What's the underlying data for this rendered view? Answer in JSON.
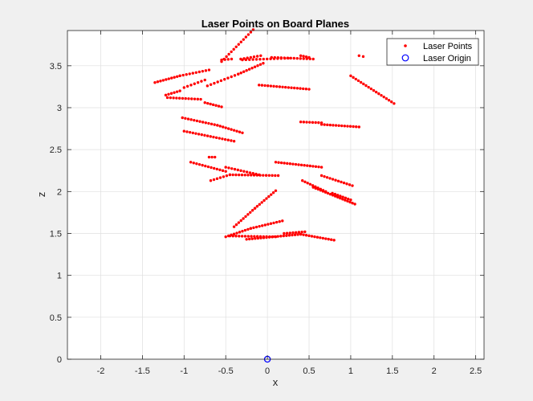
{
  "chart_data": {
    "type": "scatter",
    "title": "Laser Points on Board Planes",
    "xlabel": "x",
    "ylabel": "z",
    "xlim": [
      -2.4,
      2.6
    ],
    "ylim": [
      0,
      3.92
    ],
    "x_ticks": [
      -2,
      -1.5,
      -1,
      -0.5,
      0,
      0.5,
      1,
      1.5,
      2,
      2.5
    ],
    "x_tick_labels": [
      "-2",
      "-1.5",
      "-1",
      "-0.5",
      "0",
      "0.5",
      "1",
      "1.5",
      "2",
      "2.5"
    ],
    "y_ticks": [
      0,
      0.5,
      1,
      1.5,
      2,
      2.5,
      3,
      3.5
    ],
    "y_tick_labels": [
      "0",
      "0.5",
      "1",
      "1.5",
      "2",
      "2.5",
      "3",
      "3.5"
    ],
    "grid": true,
    "legend_position": "top-right",
    "colors": {
      "points": "#ff0000",
      "origin": "#0000ff",
      "axes": "#262626",
      "grid": "#dfdfdf"
    },
    "series": [
      {
        "name": "Laser Points",
        "marker": "dot",
        "segments": [
          {
            "x0": -0.55,
            "z0": 3.55,
            "x1": -0.17,
            "z1": 3.93,
            "n": 14
          },
          {
            "x0": -0.55,
            "z0": 3.57,
            "x1": -0.43,
            "z1": 3.58,
            "n": 4
          },
          {
            "x0": -0.3,
            "z0": 3.57,
            "x1": 0.25,
            "z1": 3.59,
            "n": 14
          },
          {
            "x0": -0.32,
            "z0": 3.58,
            "x1": -0.08,
            "z1": 3.62,
            "n": 7
          },
          {
            "x0": 0.05,
            "z0": 3.6,
            "x1": 0.55,
            "z1": 3.58,
            "n": 14
          },
          {
            "x0": 0.4,
            "z0": 3.62,
            "x1": 0.5,
            "z1": 3.6,
            "n": 4
          },
          {
            "x0": -1.35,
            "z0": 3.3,
            "x1": -1.05,
            "z1": 3.38,
            "n": 10
          },
          {
            "x0": -1.05,
            "z0": 3.38,
            "x1": -0.7,
            "z1": 3.45,
            "n": 10
          },
          {
            "x0": -0.72,
            "z0": 3.26,
            "x1": -0.35,
            "z1": 3.4,
            "n": 10
          },
          {
            "x0": -0.35,
            "z0": 3.4,
            "x1": -0.05,
            "z1": 3.53,
            "n": 10
          },
          {
            "x0": -1.0,
            "z0": 3.24,
            "x1": -0.75,
            "z1": 3.33,
            "n": 7
          },
          {
            "x0": -1.22,
            "z0": 3.15,
            "x1": -1.05,
            "z1": 3.2,
            "n": 6
          },
          {
            "x0": -1.2,
            "z0": 3.12,
            "x1": -0.8,
            "z1": 3.1,
            "n": 12
          },
          {
            "x0": -0.75,
            "z0": 3.06,
            "x1": -0.55,
            "z1": 3.01,
            "n": 7
          },
          {
            "x0": -0.1,
            "z0": 3.27,
            "x1": 0.5,
            "z1": 3.22,
            "n": 18
          },
          {
            "x0": 1.1,
            "z0": 3.62,
            "x1": 1.15,
            "z1": 3.61,
            "n": 2
          },
          {
            "x0": 1.0,
            "z0": 3.38,
            "x1": 1.52,
            "z1": 3.05,
            "n": 18
          },
          {
            "x0": -1.02,
            "z0": 2.88,
            "x1": -0.6,
            "z1": 2.79,
            "n": 13
          },
          {
            "x0": -0.6,
            "z0": 2.79,
            "x1": -0.3,
            "z1": 2.7,
            "n": 10
          },
          {
            "x0": -1.0,
            "z0": 2.72,
            "x1": -0.4,
            "z1": 2.6,
            "n": 18
          },
          {
            "x0": 0.4,
            "z0": 2.83,
            "x1": 0.65,
            "z1": 2.82,
            "n": 8
          },
          {
            "x0": 0.65,
            "z0": 2.8,
            "x1": 1.1,
            "z1": 2.77,
            "n": 14
          },
          {
            "x0": -0.7,
            "z0": 2.41,
            "x1": -0.63,
            "z1": 2.41,
            "n": 3
          },
          {
            "x0": -0.92,
            "z0": 2.35,
            "x1": -0.5,
            "z1": 2.24,
            "n": 13
          },
          {
            "x0": -0.5,
            "z0": 2.29,
            "x1": -0.1,
            "z1": 2.2,
            "n": 12
          },
          {
            "x0": -0.68,
            "z0": 2.13,
            "x1": -0.45,
            "z1": 2.2,
            "n": 7
          },
          {
            "x0": -0.45,
            "z0": 2.2,
            "x1": 0.13,
            "z1": 2.19,
            "n": 17
          },
          {
            "x0": 0.1,
            "z0": 2.35,
            "x1": 0.65,
            "z1": 2.29,
            "n": 17
          },
          {
            "x0": 0.65,
            "z0": 2.19,
            "x1": 1.02,
            "z1": 2.07,
            "n": 12
          },
          {
            "x0": 0.42,
            "z0": 2.13,
            "x1": 0.7,
            "z1": 2.0,
            "n": 10
          },
          {
            "x0": 0.55,
            "z0": 2.05,
            "x1": 1.05,
            "z1": 1.85,
            "n": 18
          },
          {
            "x0": 0.78,
            "z0": 1.98,
            "x1": 1.0,
            "z1": 1.9,
            "n": 8
          },
          {
            "x0": -0.4,
            "z0": 1.58,
            "x1": -0.15,
            "z1": 1.8,
            "n": 10
          },
          {
            "x0": -0.15,
            "z0": 1.8,
            "x1": 0.1,
            "z1": 2.01,
            "n": 10
          },
          {
            "x0": -0.5,
            "z0": 1.46,
            "x1": -0.2,
            "z1": 1.56,
            "n": 10
          },
          {
            "x0": -0.2,
            "z0": 1.56,
            "x1": 0.18,
            "z1": 1.65,
            "n": 12
          },
          {
            "x0": -0.45,
            "z0": 1.47,
            "x1": 0.1,
            "z1": 1.46,
            "n": 16
          },
          {
            "x0": -0.25,
            "z0": 1.43,
            "x1": 0.4,
            "z1": 1.49,
            "n": 20
          },
          {
            "x0": 0.2,
            "z0": 1.5,
            "x1": 0.45,
            "z1": 1.52,
            "n": 8
          },
          {
            "x0": 0.4,
            "z0": 1.49,
            "x1": 0.8,
            "z1": 1.42,
            "n": 13
          }
        ]
      },
      {
        "name": "Laser Origin",
        "marker": "circle",
        "points": [
          [
            0,
            0
          ]
        ]
      }
    ]
  }
}
